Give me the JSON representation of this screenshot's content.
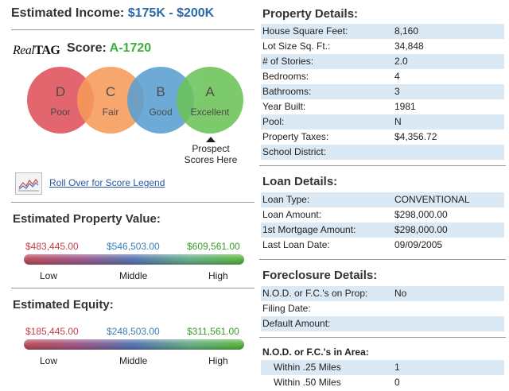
{
  "income": {
    "label": "Estimated Income:",
    "value": "$175K - $200K"
  },
  "score": {
    "logo_real": "Real",
    "logo_tag": "TAG",
    "label": "Score:",
    "value": "A-1720",
    "circles": [
      {
        "letter": "D",
        "word": "Poor",
        "color": "#e0505a"
      },
      {
        "letter": "C",
        "word": "Fair",
        "color": "#f79a5a"
      },
      {
        "letter": "B",
        "word": "Good",
        "color": "#5a9fd0"
      },
      {
        "letter": "A",
        "word": "Excellent",
        "color": "#6cc35a"
      }
    ],
    "prospect_line1": "Prospect",
    "prospect_line2": "Scores Here",
    "legend_link": "Roll Over for Score Legend"
  },
  "property_value": {
    "title": "Estimated Property Value:",
    "low": "$483,445.00",
    "middle": "$546,503.00",
    "high": "$609,561.00",
    "low_label": "Low",
    "middle_label": "Middle",
    "high_label": "High"
  },
  "equity": {
    "title": "Estimated Equity:",
    "low": "$185,445.00",
    "middle": "$248,503.00",
    "high": "$311,561.00",
    "low_label": "Low",
    "middle_label": "Middle",
    "high_label": "High"
  },
  "property_details": {
    "title": "Property Details:",
    "rows": [
      {
        "k": "House Square Feet:",
        "v": "8,160"
      },
      {
        "k": "Lot Size Sq. Ft.:",
        "v": "34,848"
      },
      {
        "k": "# of Stories:",
        "v": "2.0"
      },
      {
        "k": "Bedrooms:",
        "v": "4"
      },
      {
        "k": "Bathrooms:",
        "v": "3"
      },
      {
        "k": "Year Built:",
        "v": "1981"
      },
      {
        "k": "Pool:",
        "v": "N"
      },
      {
        "k": "Property Taxes:",
        "v": "$4,356.72"
      },
      {
        "k": "School District:",
        "v": ""
      }
    ]
  },
  "loan_details": {
    "title": "Loan Details:",
    "rows": [
      {
        "k": "Loan Type:",
        "v": "CONVENTIONAL"
      },
      {
        "k": "Loan Amount:",
        "v": "$298,000.00"
      },
      {
        "k": "1st Mortgage Amount:",
        "v": "$298,000.00"
      },
      {
        "k": "Last Loan Date:",
        "v": "09/09/2005"
      }
    ]
  },
  "foreclosure_details": {
    "title": "Foreclosure Details:",
    "rows": [
      {
        "k": "N.O.D. or F.C.'s on Prop:",
        "v": "No"
      },
      {
        "k": "Filing Date:",
        "v": ""
      },
      {
        "k": "Default Amount:",
        "v": ""
      }
    ]
  },
  "area": {
    "title": "N.O.D. or F.C.'s in Area:",
    "rows": [
      {
        "k": "Within .25 Miles",
        "v": "1"
      },
      {
        "k": "Within .50 Miles",
        "v": "0"
      }
    ]
  },
  "colors": {
    "low": "#c8404a",
    "middle": "#3a7fb5",
    "high": "#3a9a2a"
  }
}
